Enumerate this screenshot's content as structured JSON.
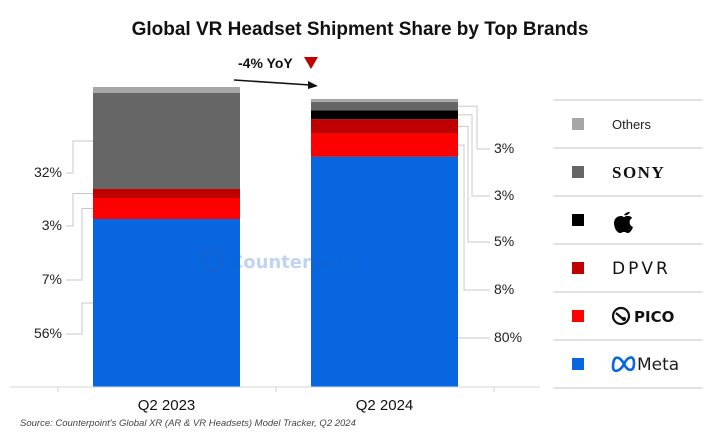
{
  "chart_data": {
    "type": "bar",
    "stacked": true,
    "title": "Global VR Headset Shipment Share by Top Brands",
    "annotation": "-4% YoY",
    "annotation_direction": "down",
    "categories": [
      "Q2 2023",
      "Q2 2024"
    ],
    "relative_total": [
      1.0,
      0.96
    ],
    "series": [
      {
        "name": "Meta",
        "color": "#0866e0",
        "values": [
          56,
          80
        ]
      },
      {
        "name": "PICO",
        "color": "#ff0000",
        "values": [
          7,
          8
        ]
      },
      {
        "name": "DPVR",
        "color": "#c00000",
        "values": [
          3,
          5
        ]
      },
      {
        "name": "Apple",
        "color": "#000000",
        "values": [
          0,
          3
        ]
      },
      {
        "name": "SONY",
        "color": "#666666",
        "values": [
          32,
          3
        ]
      },
      {
        "name": "Others",
        "color": "#a6a6a6",
        "values": [
          2,
          1
        ]
      }
    ],
    "data_labels": {
      "Q2 2023": [
        {
          "series": "SONY",
          "text": "32%"
        },
        {
          "series": "DPVR",
          "text": "3%"
        },
        {
          "series": "PICO",
          "text": "7%"
        },
        {
          "series": "Meta",
          "text": "56%"
        }
      ],
      "Q2 2024": [
        {
          "series": "SONY",
          "text": "3%"
        },
        {
          "series": "Apple",
          "text": "3%"
        },
        {
          "series": "DPVR",
          "text": "5%"
        },
        {
          "series": "PICO",
          "text": "8%"
        },
        {
          "series": "Meta",
          "text": "80%"
        }
      ]
    },
    "legend": {
      "placement": "right",
      "entries": [
        {
          "name": "Others",
          "label": "Others",
          "color": "#a6a6a6",
          "icon": "text"
        },
        {
          "name": "SONY",
          "label": "SONY",
          "color": "#666666",
          "icon": "sony-wordmark"
        },
        {
          "name": "Apple",
          "label": "",
          "color": "#000000",
          "icon": "apple-logo-icon"
        },
        {
          "name": "DPVR",
          "label": "DPVR",
          "color": "#c00000",
          "icon": "dpvr-wordmark"
        },
        {
          "name": "PICO",
          "label": "PICO",
          "color": "#ff0000",
          "icon": "pico-logo-icon"
        },
        {
          "name": "Meta",
          "label": "Meta",
          "color": "#0866e0",
          "icon": "meta-infinity-icon"
        }
      ]
    },
    "xlabel": "",
    "ylabel": "",
    "ylim": [
      0,
      100
    ],
    "grid": false
  },
  "watermark": "Counterpoint",
  "source": "Source: Counterpoint's Global XR (AR & VR Headsets) Model Tracker, Q2 2024",
  "colors": {
    "down_arrow": "#c00000"
  }
}
